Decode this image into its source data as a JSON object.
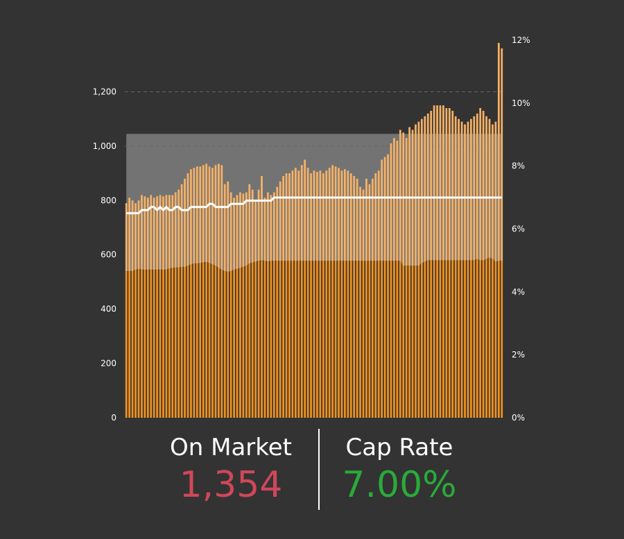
{
  "kpis": {
    "on_market": {
      "label": "On Market",
      "value": "1,354",
      "color": "#d0475a"
    },
    "cap_rate": {
      "label": "Cap Rate",
      "value": "7.00%",
      "color": "#2aaa3a"
    }
  },
  "colors": {
    "background": "#333333",
    "bar": "#f2921f",
    "bar_light": "#f6b267",
    "band": "#8a8a8a",
    "cap_rate_line": "#ffffff",
    "gridline": "#666666"
  },
  "chart_data": {
    "type": "bar",
    "title": "",
    "y_left": {
      "ticks": [
        "0",
        "200",
        "400",
        "600",
        "800",
        "1,000",
        "1,200"
      ],
      "range": [
        0,
        1390
      ]
    },
    "y_right": {
      "ticks": [
        "0%",
        "2%",
        "4%",
        "6%",
        "8%",
        "10%",
        "12%"
      ],
      "range": [
        0,
        0.12
      ]
    },
    "gridlines": [
      1000,
      1200
    ],
    "series": [
      {
        "name": "",
        "type": "bar",
        "axis": "left",
        "values": [
          790,
          810,
          800,
          790,
          800,
          820,
          815,
          810,
          820,
          810,
          815,
          820,
          815,
          820,
          820,
          820,
          830,
          840,
          860,
          880,
          900,
          915,
          920,
          925,
          925,
          930,
          935,
          925,
          920,
          930,
          935,
          930,
          860,
          870,
          830,
          810,
          820,
          830,
          825,
          830,
          860,
          840,
          800,
          840,
          890,
          810,
          830,
          820,
          830,
          850,
          870,
          890,
          900,
          900,
          910,
          920,
          910,
          930,
          950,
          920,
          900,
          910,
          905,
          910,
          900,
          910,
          920,
          930,
          925,
          920,
          910,
          915,
          910,
          900,
          890,
          880,
          850,
          840,
          880,
          860,
          880,
          900,
          910,
          950,
          960,
          970,
          1010,
          1030,
          1020,
          1060,
          1050,
          1030,
          1070,
          1060,
          1080,
          1090,
          1100,
          1110,
          1120,
          1130,
          1150,
          1150,
          1150,
          1150,
          1140,
          1140,
          1130,
          1110,
          1100,
          1090,
          1080,
          1090,
          1100,
          1110,
          1120,
          1140,
          1130,
          1110,
          1100,
          1080,
          1090,
          1380,
          1360
        ]
      },
      {
        "name": "",
        "type": "area",
        "axis": "left",
        "upper": [
          1045,
          1045,
          1045,
          1045,
          1045,
          1045,
          1045,
          1045,
          1045,
          1045,
          1045,
          1045,
          1045,
          1045,
          1045,
          1045,
          1045,
          1045,
          1045,
          1045,
          1045,
          1045,
          1045,
          1045,
          1045,
          1045,
          1045,
          1045,
          1045,
          1045,
          1045,
          1045,
          1045,
          1045,
          1045,
          1045,
          1045,
          1045,
          1045,
          1045,
          1045,
          1045,
          1045,
          1045,
          1045,
          1045,
          1045,
          1045,
          1045,
          1045,
          1045,
          1045,
          1045,
          1045,
          1045,
          1045,
          1045,
          1045,
          1045,
          1045,
          1045,
          1045,
          1045,
          1045,
          1045,
          1045,
          1045,
          1045,
          1045,
          1045,
          1045,
          1045,
          1045,
          1045,
          1045,
          1045,
          1045,
          1045,
          1045,
          1045,
          1045,
          1045,
          1045,
          1045,
          1045,
          1045,
          1045,
          1045,
          1045,
          1045,
          1045,
          1045,
          1045,
          1045,
          1045,
          1045,
          1045,
          1045,
          1045,
          1045,
          1045,
          1045,
          1045,
          1045,
          1045,
          1045,
          1045,
          1045,
          1045,
          1045,
          1045,
          1045,
          1045,
          1045,
          1045,
          1045,
          1045,
          1045,
          1045,
          1045,
          1045,
          1045,
          1045
        ],
        "lower": [
          540,
          540,
          540,
          545,
          548,
          546,
          545,
          545,
          546,
          545,
          546,
          546,
          545,
          546,
          550,
          552,
          553,
          554,
          555,
          556,
          560,
          565,
          568,
          568,
          570,
          572,
          574,
          570,
          565,
          560,
          552,
          545,
          540,
          538,
          540,
          545,
          548,
          552,
          556,
          560,
          568,
          572,
          575,
          578,
          580,
          578,
          576,
          578,
          578,
          578,
          578,
          578,
          578,
          578,
          578,
          578,
          578,
          578,
          578,
          578,
          578,
          578,
          578,
          578,
          578,
          578,
          578,
          578,
          578,
          578,
          578,
          578,
          578,
          578,
          578,
          578,
          578,
          578,
          578,
          578,
          578,
          578,
          578,
          578,
          578,
          578,
          578,
          578,
          578,
          578,
          560,
          560,
          560,
          560,
          560,
          560,
          570,
          575,
          580,
          580,
          580,
          580,
          580,
          580,
          580,
          580,
          580,
          580,
          580,
          580,
          580,
          580,
          580,
          580,
          585,
          580,
          580,
          585,
          590,
          585,
          575,
          578,
          578
        ]
      },
      {
        "name": "",
        "type": "line",
        "axis": "right",
        "values": [
          0.065,
          0.065,
          0.065,
          0.065,
          0.065,
          0.066,
          0.066,
          0.066,
          0.067,
          0.067,
          0.066,
          0.067,
          0.066,
          0.067,
          0.066,
          0.066,
          0.067,
          0.067,
          0.066,
          0.066,
          0.066,
          0.067,
          0.067,
          0.067,
          0.067,
          0.067,
          0.067,
          0.068,
          0.068,
          0.067,
          0.067,
          0.067,
          0.067,
          0.067,
          0.068,
          0.068,
          0.068,
          0.068,
          0.068,
          0.069,
          0.069,
          0.069,
          0.069,
          0.069,
          0.069,
          0.069,
          0.069,
          0.069,
          0.07,
          0.07,
          0.07,
          0.07,
          0.07,
          0.07,
          0.07,
          0.07,
          0.07,
          0.07,
          0.07,
          0.07,
          0.07,
          0.07,
          0.07,
          0.07,
          0.07,
          0.07,
          0.07,
          0.07,
          0.07,
          0.07,
          0.07,
          0.07,
          0.07,
          0.07,
          0.07,
          0.07,
          0.07,
          0.07,
          0.07,
          0.07,
          0.07,
          0.07,
          0.07,
          0.07,
          0.07,
          0.07,
          0.07,
          0.07,
          0.07,
          0.07,
          0.07,
          0.07,
          0.07,
          0.07,
          0.07,
          0.07,
          0.07,
          0.07,
          0.07,
          0.07,
          0.07,
          0.07,
          0.07,
          0.07,
          0.07,
          0.07,
          0.07,
          0.07,
          0.07,
          0.07,
          0.07,
          0.07,
          0.07,
          0.07,
          0.07,
          0.07,
          0.07,
          0.07,
          0.07,
          0.07,
          0.07,
          0.07,
          0.07
        ]
      }
    ]
  }
}
